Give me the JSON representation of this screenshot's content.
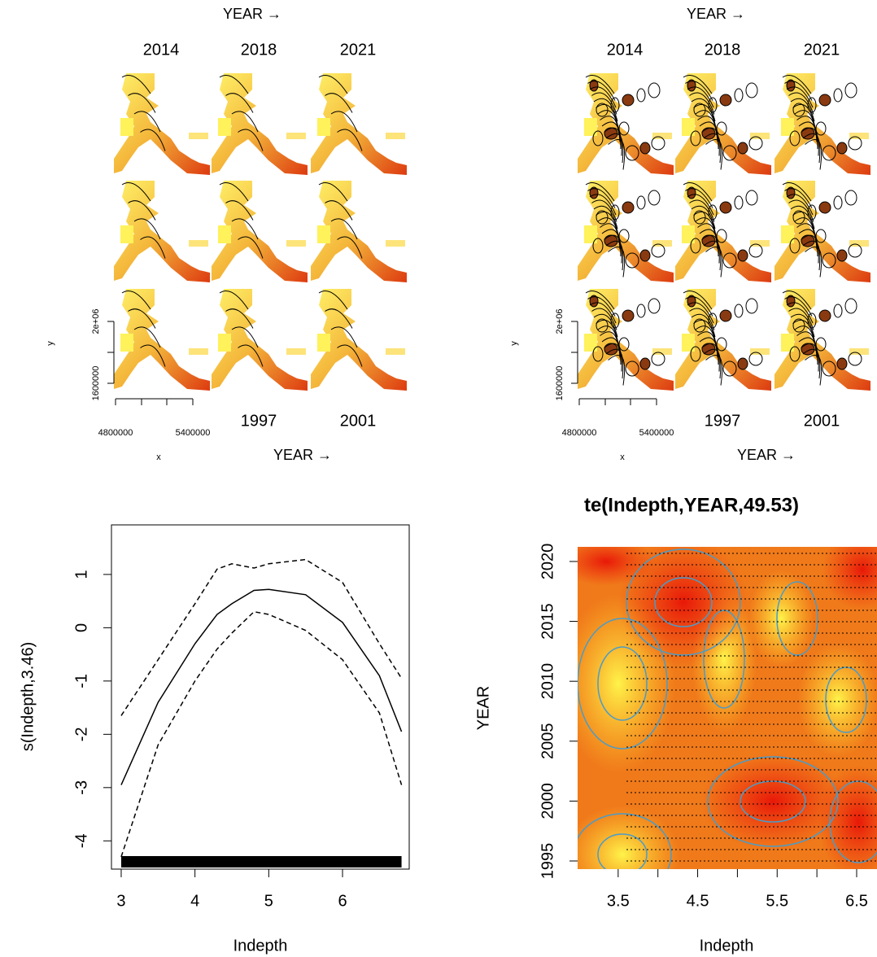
{
  "chart_data": [
    {
      "type": "facet",
      "top_label": "YEAR →",
      "column_labels": [
        "2014",
        "2018",
        "2021"
      ],
      "bottom_labels": [
        "1997",
        "2001"
      ],
      "bottom_label": "YEAR →",
      "x_label": "x",
      "y_label": "y",
      "xlim": [
        4800000,
        5400000
      ],
      "xticks": [
        4800000,
        5400000
      ],
      "ylim": [
        1600000,
        2000000
      ],
      "yticks": [
        1600000,
        {
          "value": 2000000,
          "label": "2e+06"
        }
      ]
    },
    {
      "type": "facet",
      "top_label": "YEAR →",
      "column_labels": [
        "2014",
        "2018",
        "2021"
      ],
      "bottom_labels": [
        "1997",
        "2001"
      ],
      "bottom_label": "YEAR →",
      "x_label": "x",
      "y_label": "y",
      "xlim": [
        4800000,
        5400000
      ],
      "xticks": [
        4800000,
        5400000
      ],
      "ylim": [
        1600000,
        2000000
      ],
      "yticks": [
        1600000,
        {
          "value": 2000000,
          "label": "2e+06"
        }
      ]
    },
    {
      "type": "line",
      "x_label": "Indepth",
      "y_label": "s(Indepth,3.46)",
      "x": [
        3,
        3.5,
        4,
        4.3,
        4.5,
        4.8,
        5,
        5.5,
        6,
        6.5,
        6.8
      ],
      "series": [
        {
          "color": "#000000",
          "dash": "solid",
          "values": [
            -2.95,
            -1.4,
            -0.3,
            0.25,
            0.45,
            0.7,
            0.72,
            0.62,
            0.1,
            -0.9,
            -1.95
          ]
        },
        {
          "color": "#000000",
          "dash": "dashed",
          "values": [
            -1.65,
            -0.6,
            0.45,
            1.1,
            1.2,
            1.12,
            1.2,
            1.28,
            0.85,
            -0.3,
            -0.95
          ]
        },
        {
          "color": "#000000",
          "dash": "dashed",
          "values": [
            -4.3,
            -2.2,
            -1.0,
            -0.4,
            -0.1,
            0.3,
            0.25,
            -0.05,
            -0.6,
            -1.6,
            -2.95
          ]
        }
      ],
      "xlim": [
        2.868,
        6.904
      ],
      "xticks": [
        3,
        4,
        5,
        6
      ],
      "ylim": [
        -4.53,
        1.93
      ],
      "yticks": [
        1,
        0,
        -1,
        -2,
        -3,
        -4
      ]
    },
    {
      "type": "heatmap",
      "title": "te(Indepth,YEAR,49.53)",
      "x_label": "Indepth",
      "y_label": "YEAR",
      "xlim": [
        2.99,
        6.756
      ],
      "xticks": [
        3.5,
        4.5,
        5.5,
        6.5
      ],
      "ylim": [
        1994.32,
        2021.22
      ],
      "yticks": [
        1995,
        2000,
        2005,
        2010,
        2015,
        2020
      ]
    }
  ]
}
